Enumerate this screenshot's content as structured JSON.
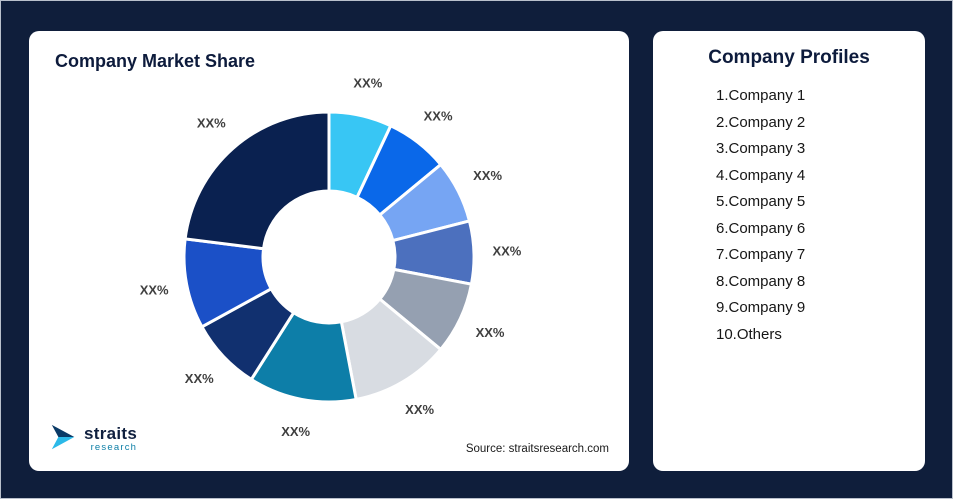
{
  "theme": {
    "page_bg": "#0F1E3B",
    "card_bg": "#FFFFFF",
    "title_color": "#0D1B3C",
    "label_color": "#3F3F3F"
  },
  "market_share_card": {
    "title": "Company Market Share",
    "source_text": "Source: straitsresearch.com",
    "logo_text": "straits",
    "logo_subtext": "research"
  },
  "profiles_card": {
    "title": "Company Profiles",
    "items": [
      "1.Company 1",
      "2.Company 2",
      "3.Company 3",
      "4.Company 4",
      "5.Company 5",
      "6.Company 6",
      "7.Company 7",
      "8.Company 8",
      "9.Company 9",
      "10.Others"
    ]
  },
  "chart_data": {
    "type": "pie",
    "variant": "donut",
    "title": "Company Market Share",
    "value_labels_shown": "XX%",
    "start_angle_deg": 0,
    "direction": "clockwise",
    "inner_radius_ratio": 0.455,
    "segments": [
      {
        "name": "Company 1",
        "label": "XX%",
        "value": 7,
        "color": "#38C6F4"
      },
      {
        "name": "Company 2",
        "label": "XX%",
        "value": 7,
        "color": "#0A68E9"
      },
      {
        "name": "Company 3",
        "label": "XX%",
        "value": 7,
        "color": "#76A5F3"
      },
      {
        "name": "Company 4",
        "label": "XX%",
        "value": 7,
        "color": "#4C70BE"
      },
      {
        "name": "Company 5",
        "label": "XX%",
        "value": 8,
        "color": "#95A0B1"
      },
      {
        "name": "Company 6",
        "label": "XX%",
        "value": 11,
        "color": "#D8DCE2"
      },
      {
        "name": "Company 7",
        "label": "XX%",
        "value": 12,
        "color": "#0D7EA8"
      },
      {
        "name": "Company 8",
        "label": "XX%",
        "value": 8,
        "color": "#11306F"
      },
      {
        "name": "Company 9",
        "label": "XX%",
        "value": 10,
        "color": "#1B50C7"
      },
      {
        "name": "Others",
        "label": "XX%",
        "value": 23,
        "color": "#0A2150"
      }
    ]
  }
}
